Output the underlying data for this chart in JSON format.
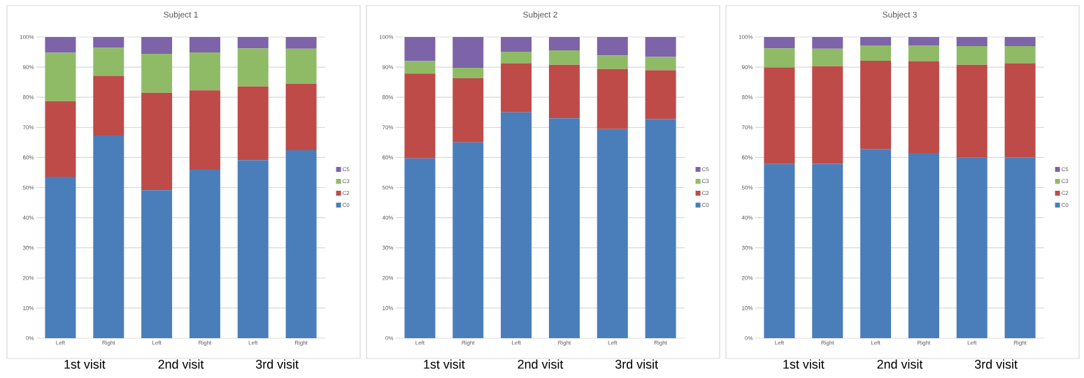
{
  "chart_data": [
    {
      "type": "bar",
      "title": "Subject 1",
      "stacked": true,
      "grid": "y",
      "legend": "right",
      "categories": [
        "Left",
        "Right",
        "Left",
        "Right",
        "Left",
        "Right"
      ],
      "annotations": [
        "1st visit",
        "2nd visit",
        "3rd visit"
      ],
      "ylim": [
        0,
        100
      ],
      "yticks": [
        {
          "value": 0,
          "label": "0%"
        },
        {
          "value": 10,
          "label": "10%"
        },
        {
          "value": 20,
          "label": "20%"
        },
        {
          "value": 30,
          "label": "30%"
        },
        {
          "value": 40,
          "label": "40%"
        },
        {
          "value": 50,
          "label": "50%"
        },
        {
          "value": 60,
          "label": "60%"
        },
        {
          "value": 70,
          "label": "70%"
        },
        {
          "value": 80,
          "label": "80%"
        },
        {
          "value": 90,
          "label": "90%"
        },
        {
          "value": 100,
          "label": "100%"
        }
      ],
      "series": [
        {
          "name": "C0",
          "color": "#4a7ebb",
          "values": [
            53.6,
            67.3,
            49.1,
            55.9,
            59.1,
            62.4
          ]
        },
        {
          "name": "C2",
          "color": "#be4b48",
          "values": [
            25.1,
            19.8,
            32.4,
            26.4,
            24.5,
            22.1
          ]
        },
        {
          "name": "C3",
          "color": "#8fbb67",
          "values": [
            16.1,
            9.3,
            12.9,
            12.6,
            12.6,
            11.6
          ]
        },
        {
          "name": "C5",
          "color": "#7d63a8",
          "values": [
            5.2,
            3.6,
            5.6,
            5.1,
            3.8,
            3.9
          ]
        }
      ]
    },
    {
      "type": "bar",
      "title": "Subject 2",
      "stacked": true,
      "grid": "y",
      "legend": "right",
      "categories": [
        "Left",
        "Right",
        "Left",
        "Right",
        "Left",
        "Right"
      ],
      "annotations": [
        "1st visit",
        "2nd visit",
        "3rd visit"
      ],
      "ylim": [
        0,
        100
      ],
      "yticks": [
        {
          "value": 0,
          "label": "0%"
        },
        {
          "value": 10,
          "label": "10%"
        },
        {
          "value": 20,
          "label": "20%"
        },
        {
          "value": 30,
          "label": "30%"
        },
        {
          "value": 40,
          "label": "40%"
        },
        {
          "value": 50,
          "label": "50%"
        },
        {
          "value": 60,
          "label": "60%"
        },
        {
          "value": 70,
          "label": "70%"
        },
        {
          "value": 80,
          "label": "80%"
        },
        {
          "value": 90,
          "label": "90%"
        },
        {
          "value": 100,
          "label": "100%"
        }
      ],
      "series": [
        {
          "name": "C0",
          "color": "#4a7ebb",
          "values": [
            59.7,
            65.0,
            75.0,
            73.0,
            69.4,
            72.8
          ]
        },
        {
          "name": "C2",
          "color": "#be4b48",
          "values": [
            28.2,
            21.3,
            16.3,
            17.8,
            20.0,
            16.2
          ]
        },
        {
          "name": "C3",
          "color": "#8fbb67",
          "values": [
            4.1,
            3.5,
            3.8,
            4.8,
            4.5,
            4.4
          ]
        },
        {
          "name": "C5",
          "color": "#7d63a8",
          "values": [
            8.0,
            10.2,
            4.9,
            4.4,
            6.1,
            6.6
          ]
        }
      ]
    },
    {
      "type": "bar",
      "title": "Subject 3",
      "stacked": true,
      "grid": "y",
      "legend": "right",
      "categories": [
        "Left",
        "Right",
        "Left",
        "Right",
        "Left",
        "Right"
      ],
      "annotations": [
        "1st visit",
        "2nd visit",
        "3rd visit"
      ],
      "ylim": [
        0,
        100
      ],
      "yticks": [
        {
          "value": 0,
          "label": "0%"
        },
        {
          "value": 10,
          "label": "10%"
        },
        {
          "value": 20,
          "label": "20%"
        },
        {
          "value": 30,
          "label": "30%"
        },
        {
          "value": 40,
          "label": "40%"
        },
        {
          "value": 50,
          "label": "50%"
        },
        {
          "value": 60,
          "label": "60%"
        },
        {
          "value": 70,
          "label": "70%"
        },
        {
          "value": 80,
          "label": "80%"
        },
        {
          "value": 90,
          "label": "90%"
        },
        {
          "value": 100,
          "label": "100%"
        }
      ],
      "series": [
        {
          "name": "C0",
          "color": "#4a7ebb",
          "values": [
            57.8,
            57.9,
            62.8,
            61.5,
            59.9,
            60.0
          ]
        },
        {
          "name": "C2",
          "color": "#be4b48",
          "values": [
            32.1,
            32.4,
            29.3,
            30.5,
            30.9,
            31.3
          ]
        },
        {
          "name": "C3",
          "color": "#8fbb67",
          "values": [
            6.3,
            5.8,
            5.1,
            5.1,
            6.2,
            5.7
          ]
        },
        {
          "name": "C5",
          "color": "#7d63a8",
          "values": [
            3.8,
            3.9,
            2.8,
            2.9,
            3.0,
            3.0
          ]
        }
      ]
    }
  ]
}
